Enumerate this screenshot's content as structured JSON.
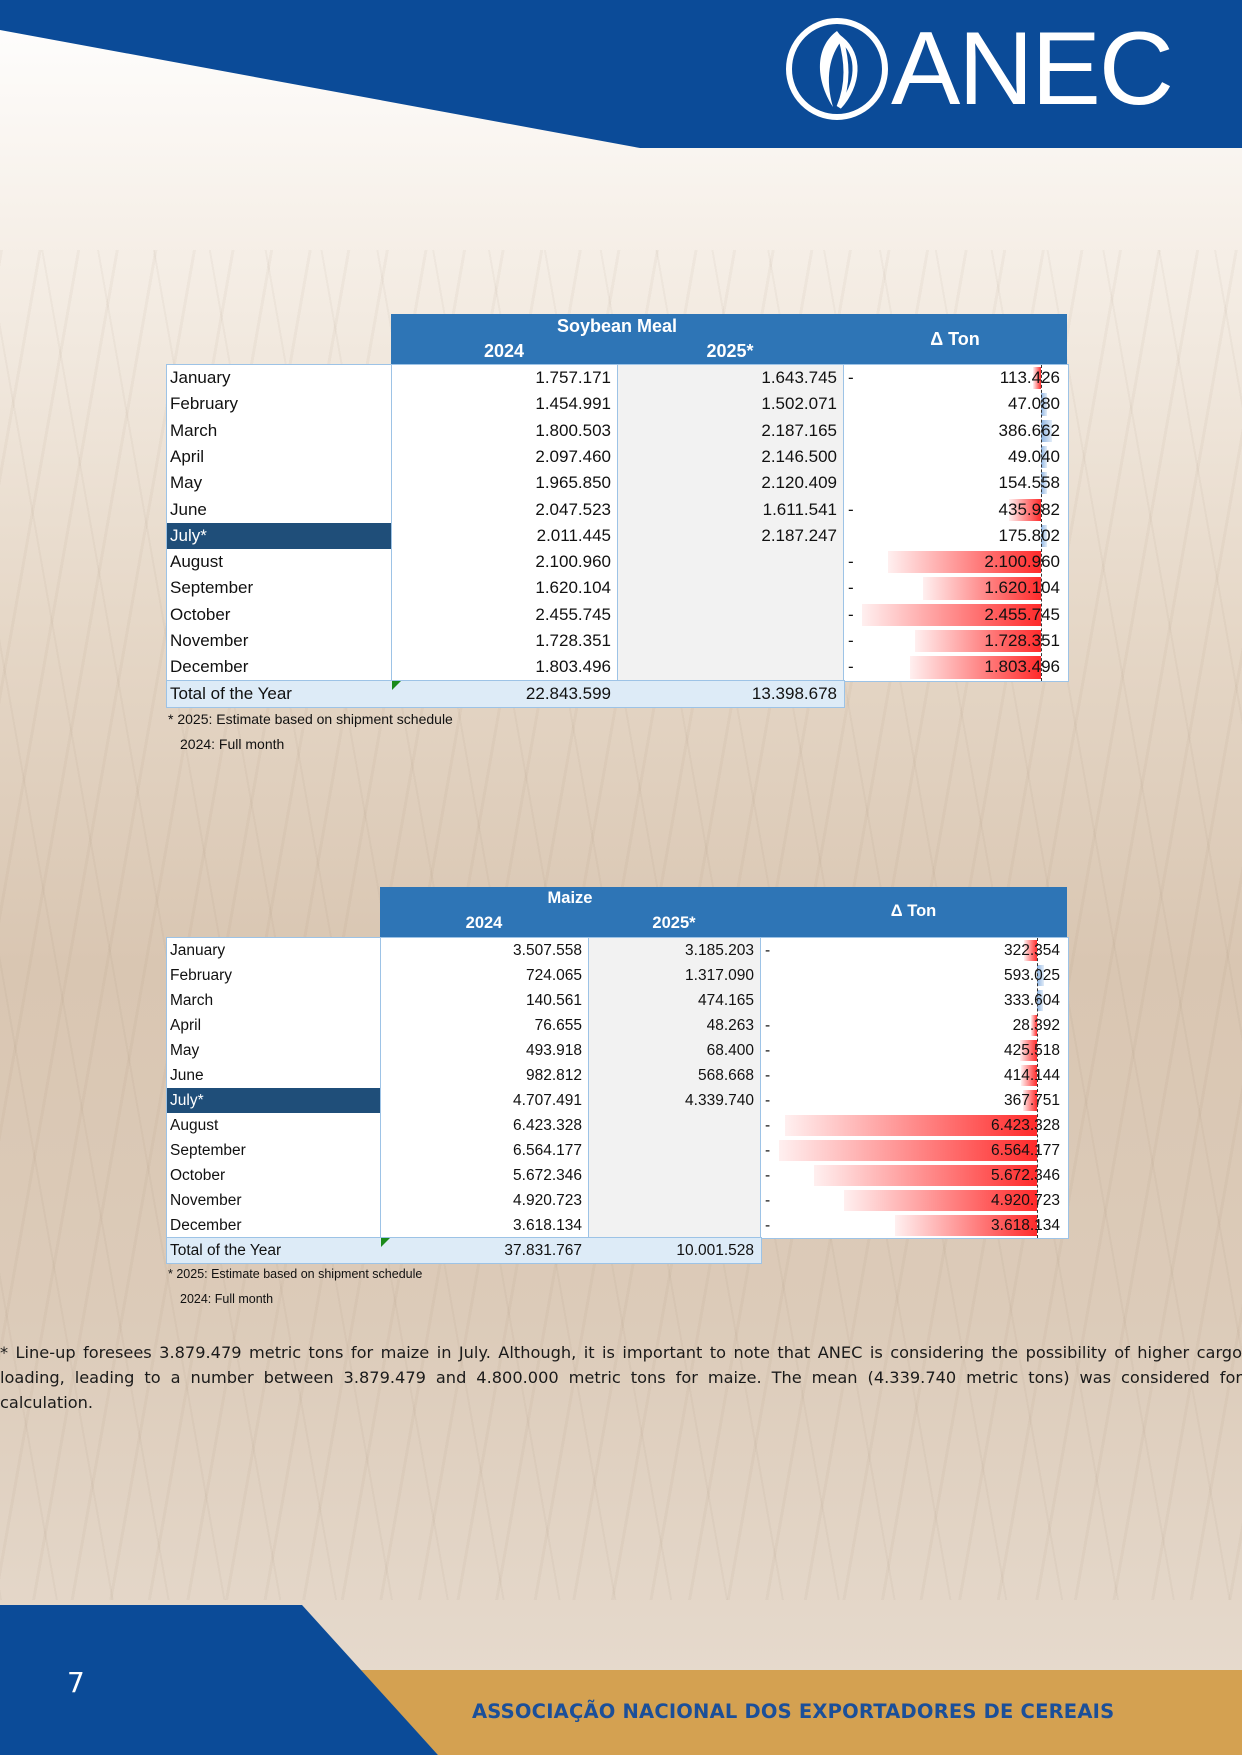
{
  "brand": {
    "logo_text": "ANEC",
    "primary_color": "#0b4b98",
    "accent_color": "#d4a151"
  },
  "soy": {
    "title": "Soybean Meal",
    "year1": "2024",
    "year2": "2025*",
    "delta_header": "Δ Ton",
    "rows": [
      {
        "month": "January",
        "v2024": "1.757.171",
        "v2025": "1.643.745",
        "sign": "-",
        "delta": "113.426",
        "delta_value": -113426
      },
      {
        "month": "February",
        "v2024": "1.454.991",
        "v2025": "1.502.071",
        "sign": "",
        "delta": "47.080",
        "delta_value": 47080
      },
      {
        "month": "March",
        "v2024": "1.800.503",
        "v2025": "2.187.165",
        "sign": "",
        "delta": "386.662",
        "delta_value": 386662
      },
      {
        "month": "April",
        "v2024": "2.097.460",
        "v2025": "2.146.500",
        "sign": "",
        "delta": "49.040",
        "delta_value": 49040
      },
      {
        "month": "May",
        "v2024": "1.965.850",
        "v2025": "2.120.409",
        "sign": "",
        "delta": "154.558",
        "delta_value": 154558
      },
      {
        "month": "June",
        "v2024": "2.047.523",
        "v2025": "1.611.541",
        "sign": "-",
        "delta": "435.982",
        "delta_value": -435982
      },
      {
        "month": "July*",
        "v2024": "2.011.445",
        "v2025": "2.187.247",
        "sign": "",
        "delta": "175.802",
        "delta_value": 175802,
        "highlight": true
      },
      {
        "month": "August",
        "v2024": "2.100.960",
        "v2025": "",
        "sign": "-",
        "delta": "2.100.960",
        "delta_value": -2100960
      },
      {
        "month": "September",
        "v2024": "1.620.104",
        "v2025": "",
        "sign": "-",
        "delta": "1.620.104",
        "delta_value": -1620104
      },
      {
        "month": "October",
        "v2024": "2.455.745",
        "v2025": "",
        "sign": "-",
        "delta": "2.455.745",
        "delta_value": -2455745
      },
      {
        "month": "November",
        "v2024": "1.728.351",
        "v2025": "",
        "sign": "-",
        "delta": "1.728.351",
        "delta_value": -1728351
      },
      {
        "month": "December",
        "v2024": "1.803.496",
        "v2025": "",
        "sign": "-",
        "delta": "1.803.496",
        "delta_value": -1803496
      }
    ],
    "total_label": "Total of the Year",
    "total_2024": "22.843.599",
    "total_2025": "13.398.678",
    "note1": "* 2025: Estimate based on shipment schedule",
    "note2": "2024: Full month"
  },
  "maize": {
    "title": "Maize",
    "year1": "2024",
    "year2": "2025*",
    "delta_header": "Δ Ton",
    "rows": [
      {
        "month": "January",
        "v2024": "3.507.558",
        "v2025": "3.185.203",
        "sign": "-",
        "delta": "322.354",
        "delta_value": -322354
      },
      {
        "month": "February",
        "v2024": "724.065",
        "v2025": "1.317.090",
        "sign": "",
        "delta": "593.025",
        "delta_value": 593025
      },
      {
        "month": "March",
        "v2024": "140.561",
        "v2025": "474.165",
        "sign": "",
        "delta": "333.604",
        "delta_value": 333604
      },
      {
        "month": "April",
        "v2024": "76.655",
        "v2025": "48.263",
        "sign": "-",
        "delta": "28.392",
        "delta_value": -28392
      },
      {
        "month": "May",
        "v2024": "493.918",
        "v2025": "68.400",
        "sign": "-",
        "delta": "425.518",
        "delta_value": -425518
      },
      {
        "month": "June",
        "v2024": "982.812",
        "v2025": "568.668",
        "sign": "-",
        "delta": "414.144",
        "delta_value": -414144
      },
      {
        "month": "July*",
        "v2024": "4.707.491",
        "v2025": "4.339.740",
        "sign": "-",
        "delta": "367.751",
        "delta_value": -367751,
        "highlight": true
      },
      {
        "month": "August",
        "v2024": "6.423.328",
        "v2025": "",
        "sign": "-",
        "delta": "6.423.328",
        "delta_value": -6423328
      },
      {
        "month": "September",
        "v2024": "6.564.177",
        "v2025": "",
        "sign": "-",
        "delta": "6.564.177",
        "delta_value": -6564177
      },
      {
        "month": "October",
        "v2024": "5.672.346",
        "v2025": "",
        "sign": "-",
        "delta": "5.672.346",
        "delta_value": -5672346
      },
      {
        "month": "November",
        "v2024": "4.920.723",
        "v2025": "",
        "sign": "-",
        "delta": "4.920.723",
        "delta_value": -4920723
      },
      {
        "month": "December",
        "v2024": "3.618.134",
        "v2025": "",
        "sign": "-",
        "delta": "3.618.134",
        "delta_value": -3618134
      }
    ],
    "total_label": "Total of the Year",
    "total_2024": "37.831.767",
    "total_2025": "10.001.528",
    "note1": "* 2025: Estimate based on shipment schedule",
    "note2": "2024: Full month"
  },
  "footnote": "* Line-up foresees 3.879.479 metric tons for maize in July. Although, it is important to note that ANEC is considering the possibility of higher cargo loading, leading to a number between 3.879.479 and 4.800.000 metric tons for maize. The mean (4.339.740 metric tons) was considered for calculation.",
  "footer": {
    "page_number": "7",
    "org_name": "ASSOCIAÇÃO NACIONAL DOS EXPORTADORES DE CEREAIS"
  }
}
